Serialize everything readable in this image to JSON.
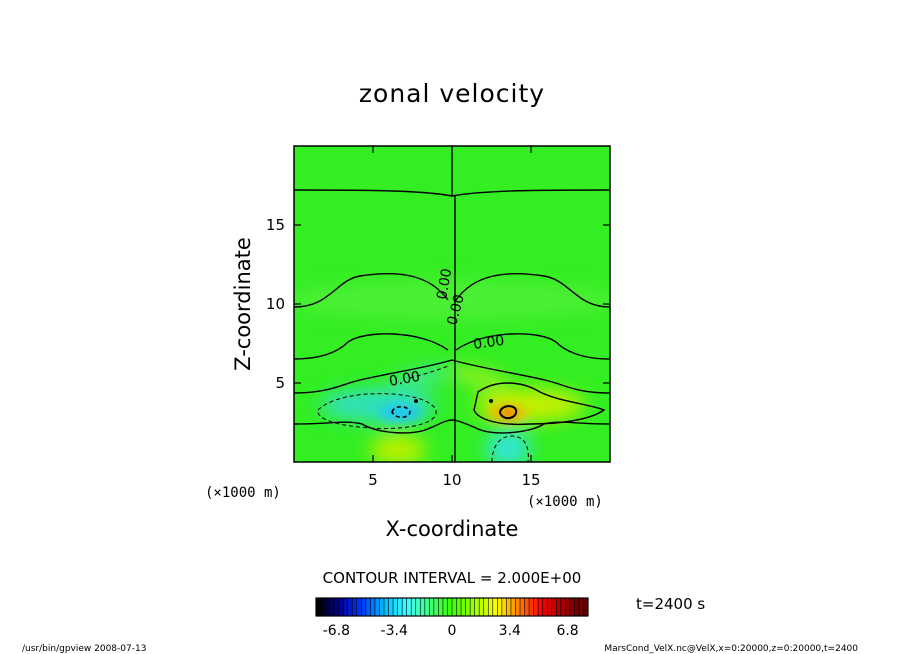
{
  "chart_data": {
    "type": "heatmap",
    "title": "zonal velocity",
    "xlabel": "X-coordinate",
    "ylabel": "Z-coordinate",
    "x_unit": "(×1000 m)",
    "z_unit": "(×1000 m)",
    "xlim": [
      0,
      20
    ],
    "ylim": [
      0,
      20
    ],
    "x_ticks": [
      5,
      10,
      15
    ],
    "y_ticks": [
      5,
      10,
      15
    ],
    "contour_label": "0.00",
    "contour_interval_text": "CONTOUR INTERVAL = 2.000E+00",
    "time_text": "t=2400 s",
    "colorbar": {
      "range": [
        -8,
        8
      ],
      "tick_values": [
        -6.8,
        -3.4,
        0,
        3.4,
        6.8
      ],
      "tick_labels": [
        "-6.8",
        "-3.4",
        "0",
        "3.4",
        "6.8"
      ],
      "colors": [
        "#000000",
        "#0000a0",
        "#0040ff",
        "#00c0ff",
        "#40ffff",
        "#40ff80",
        "#40ff00",
        "#a0ff00",
        "#ffff00",
        "#ff8000",
        "#ff0000",
        "#a00000",
        "#600000"
      ]
    },
    "features": [
      {
        "name": "negative-core-left",
        "x": 6.8,
        "z": 2.9,
        "value": -5.5
      },
      {
        "name": "negative-lobe-left",
        "x": 5.5,
        "z": 3.2,
        "value": -2.5
      },
      {
        "name": "negative-bottom-right",
        "x": 13.5,
        "z": 0.9,
        "value": -2.5
      },
      {
        "name": "positive-core-right",
        "x": 13.3,
        "z": 3.0,
        "value": 5.0
      },
      {
        "name": "positive-lobe-right",
        "x": 14.5,
        "z": 3.2,
        "value": 3.0
      },
      {
        "name": "positive-bottom-left",
        "x": 6.5,
        "z": 0.7,
        "value": 2.0
      }
    ]
  },
  "footer": {
    "left": "/usr/bin/gpview   2008-07-13",
    "right": "MarsCond_VelX.nc@VelX,x=0:20000,z=0:20000,t=2400"
  }
}
